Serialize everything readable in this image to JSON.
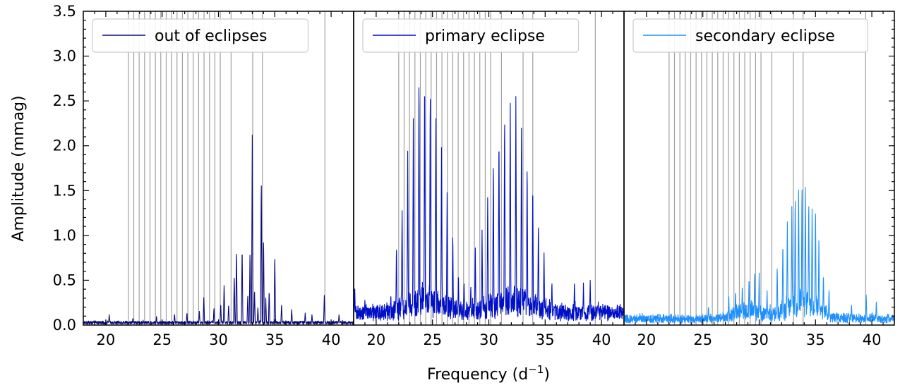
{
  "chart_data": {
    "type": "line",
    "xlabel": "Frequency (d",
    "xlabel_sup": "−1",
    "xlabel_close": ")",
    "ylabel": "Amplitude (mmag)",
    "xlim": [
      18,
      42
    ],
    "ylim": [
      0,
      3.5
    ],
    "xticks": [
      "20",
      "25",
      "30",
      "35",
      "40"
    ],
    "yticks": [
      "0.0",
      "0.5",
      "1.0",
      "1.5",
      "2.0",
      "2.5",
      "3.0",
      "3.5"
    ],
    "grid": false,
    "legend_position": "top-left",
    "vertical_lines": [
      22.0,
      22.48,
      22.96,
      23.44,
      23.92,
      24.4,
      24.88,
      25.36,
      25.84,
      26.32,
      26.8,
      27.28,
      27.76,
      28.24,
      28.72,
      29.2,
      29.68,
      30.16,
      31.12,
      33.04,
      33.9,
      39.45
    ],
    "panels": [
      {
        "legend": "out of eclipses",
        "color": "#0b0b7c",
        "noise_base": 0.04,
        "bumps": [],
        "peaks": [
          [
            20.3,
            0.12
          ],
          [
            22.4,
            0.08
          ],
          [
            24.5,
            0.1
          ],
          [
            26.1,
            0.13
          ],
          [
            27.2,
            0.14
          ],
          [
            28.3,
            0.16
          ],
          [
            28.7,
            0.32
          ],
          [
            29.6,
            0.2
          ],
          [
            30.2,
            0.24
          ],
          [
            30.5,
            0.46
          ],
          [
            30.9,
            0.24
          ],
          [
            31.4,
            0.57
          ],
          [
            31.6,
            0.86
          ],
          [
            32.1,
            0.89
          ],
          [
            32.6,
            0.35
          ],
          [
            32.8,
            0.85
          ],
          [
            33.0,
            2.12
          ],
          [
            33.2,
            0.4
          ],
          [
            33.5,
            0.2
          ],
          [
            33.8,
            1.69
          ],
          [
            34.0,
            1.0
          ],
          [
            34.2,
            0.3
          ],
          [
            34.5,
            0.4
          ],
          [
            35.0,
            0.8
          ],
          [
            35.6,
            0.24
          ],
          [
            36.5,
            0.18
          ],
          [
            37.7,
            0.14
          ],
          [
            38.3,
            0.12
          ],
          [
            39.4,
            0.36
          ],
          [
            40.7,
            0.12
          ]
        ]
      },
      {
        "legend": "primary eclipse",
        "color": "#0010c8",
        "noise_base": 0.2,
        "bumps": [
          [
            24.5,
            1.6,
            0.18
          ],
          [
            32.0,
            1.7,
            0.2
          ]
        ],
        "peaks": [
          [
            18.1,
            0.42
          ],
          [
            19.0,
            0.3
          ],
          [
            21.3,
            0.36
          ],
          [
            21.8,
            0.91
          ],
          [
            22.3,
            1.33
          ],
          [
            22.8,
            1.94
          ],
          [
            23.3,
            2.4
          ],
          [
            23.8,
            2.88
          ],
          [
            24.3,
            2.9
          ],
          [
            24.8,
            2.74
          ],
          [
            25.3,
            2.4
          ],
          [
            25.8,
            1.98
          ],
          [
            26.3,
            1.54
          ],
          [
            26.8,
            1.06
          ],
          [
            27.3,
            0.6
          ],
          [
            27.8,
            0.5
          ],
          [
            28.4,
            0.46
          ],
          [
            28.8,
            0.86
          ],
          [
            29.4,
            1.06
          ],
          [
            29.9,
            1.48
          ],
          [
            30.4,
            1.9
          ],
          [
            30.9,
            2.2
          ],
          [
            31.4,
            2.43
          ],
          [
            31.9,
            2.58
          ],
          [
            32.4,
            2.55
          ],
          [
            32.9,
            2.29
          ],
          [
            33.4,
            1.86
          ],
          [
            33.9,
            1.64
          ],
          [
            34.4,
            1.18
          ],
          [
            34.9,
            0.84
          ],
          [
            35.6,
            0.5
          ],
          [
            37.6,
            0.5
          ],
          [
            38.4,
            0.47
          ],
          [
            39.0,
            0.5
          ]
        ]
      },
      {
        "legend": "secondary eclipse",
        "color": "#1e90ff",
        "noise_base": 0.1,
        "bumps": [
          [
            29.0,
            1.3,
            0.12
          ],
          [
            33.8,
            1.4,
            0.25
          ]
        ],
        "peaks": [
          [
            25.5,
            0.22
          ],
          [
            27.3,
            0.36
          ],
          [
            27.9,
            0.4
          ],
          [
            28.5,
            0.47
          ],
          [
            29.1,
            0.55
          ],
          [
            29.6,
            0.62
          ],
          [
            30.0,
            0.58
          ],
          [
            30.7,
            0.4
          ],
          [
            31.6,
            0.68
          ],
          [
            32.1,
            0.96
          ],
          [
            32.5,
            1.2
          ],
          [
            32.9,
            1.38
          ],
          [
            33.2,
            1.5
          ],
          [
            33.5,
            1.57
          ],
          [
            33.8,
            1.64
          ],
          [
            34.1,
            1.6
          ],
          [
            34.4,
            1.44
          ],
          [
            34.7,
            1.35
          ],
          [
            35.0,
            1.35
          ],
          [
            35.3,
            0.98
          ],
          [
            35.7,
            0.6
          ],
          [
            36.2,
            0.42
          ],
          [
            38.2,
            0.24
          ],
          [
            39.5,
            0.35
          ],
          [
            40.4,
            0.28
          ]
        ]
      }
    ]
  }
}
